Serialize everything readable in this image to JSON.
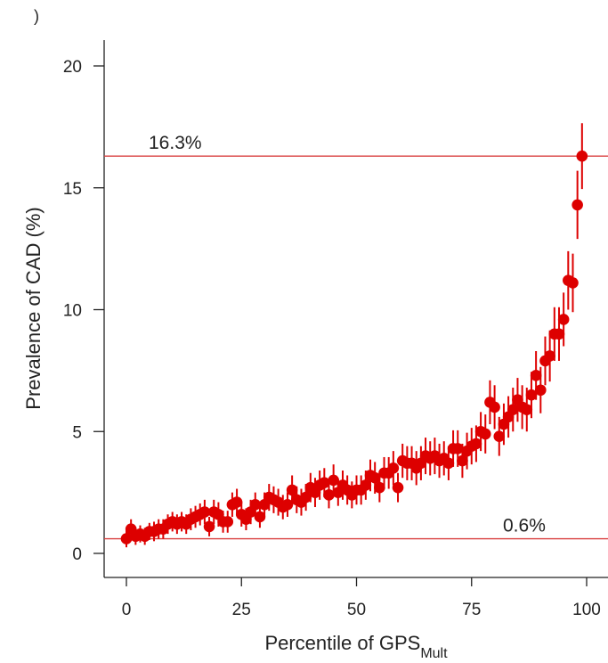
{
  "panel_label": ")",
  "chart_data": {
    "type": "scatter",
    "title": "",
    "xlabel": "Percentile of GPS",
    "xlabel_subscript": "Mult",
    "ylabel": "Prevalence of CAD (%)",
    "xlim": [
      0,
      100
    ],
    "ylim": [
      0,
      20
    ],
    "xticks": [
      0,
      25,
      50,
      75,
      100
    ],
    "yticks": [
      0,
      5,
      10,
      15,
      20
    ],
    "grid": false,
    "point_color": "#dd0000",
    "line_color": "#d94040",
    "reference_lines": [
      {
        "name": "top-percentile",
        "y": 16.3,
        "label": "16.3%"
      },
      {
        "name": "bottom-percentile",
        "y": 0.6,
        "label": "0.6%"
      }
    ],
    "series": [
      {
        "x": [
          0,
          1,
          2,
          3,
          4,
          5,
          6,
          7,
          8,
          9,
          10,
          11,
          12,
          13,
          14,
          15,
          16,
          17,
          18,
          19,
          20,
          21,
          22,
          23,
          24,
          25,
          26,
          27,
          28,
          29,
          30,
          31,
          32,
          33,
          34,
          35,
          36,
          37,
          38,
          39,
          40,
          41,
          42,
          43,
          44,
          45,
          46,
          47,
          48,
          49,
          50,
          51,
          52,
          53,
          54,
          55,
          56,
          57,
          58,
          59,
          60,
          61,
          62,
          63,
          64,
          65,
          66,
          67,
          68,
          69,
          70,
          71,
          72,
          73,
          74,
          75,
          76,
          77,
          78,
          79,
          80,
          81,
          82,
          83,
          84,
          85,
          86,
          87,
          88,
          89,
          90,
          91,
          92,
          93,
          94,
          95,
          96,
          97,
          98,
          99
        ],
        "y": [
          0.6,
          1.0,
          0.7,
          0.8,
          0.7,
          0.9,
          0.9,
          1.0,
          1.0,
          1.2,
          1.3,
          1.2,
          1.3,
          1.2,
          1.4,
          1.5,
          1.6,
          1.7,
          1.1,
          1.7,
          1.6,
          1.3,
          1.3,
          2.0,
          2.1,
          1.6,
          1.4,
          1.7,
          2.0,
          1.5,
          2.0,
          2.3,
          2.2,
          2.1,
          1.9,
          2.0,
          2.6,
          2.2,
          2.1,
          2.3,
          2.7,
          2.5,
          2.8,
          2.9,
          2.4,
          3.0,
          2.5,
          2.8,
          2.6,
          2.4,
          2.6,
          2.6,
          2.8,
          3.2,
          3.1,
          2.7,
          3.3,
          3.3,
          3.5,
          2.7,
          3.8,
          3.7,
          3.7,
          3.5,
          3.7,
          4.0,
          3.9,
          4.0,
          3.8,
          3.9,
          3.7,
          4.3,
          4.3,
          3.8,
          4.2,
          4.4,
          4.5,
          5.0,
          4.9,
          6.2,
          6.0,
          4.8,
          5.3,
          5.6,
          5.9,
          6.3,
          6.0,
          5.9,
          6.5,
          7.3,
          6.7,
          7.9,
          8.1,
          9.0,
          9.0,
          9.6,
          11.2,
          11.1,
          14.3,
          16.3
        ],
        "error": [
          0.35,
          0.4,
          0.35,
          0.35,
          0.35,
          0.35,
          0.4,
          0.4,
          0.4,
          0.4,
          0.4,
          0.4,
          0.4,
          0.4,
          0.45,
          0.45,
          0.45,
          0.5,
          0.4,
          0.5,
          0.5,
          0.45,
          0.45,
          0.5,
          0.55,
          0.5,
          0.45,
          0.5,
          0.5,
          0.45,
          0.5,
          0.55,
          0.55,
          0.55,
          0.5,
          0.5,
          0.6,
          0.55,
          0.55,
          0.55,
          0.6,
          0.6,
          0.6,
          0.6,
          0.55,
          0.65,
          0.55,
          0.6,
          0.6,
          0.55,
          0.6,
          0.6,
          0.6,
          0.65,
          0.65,
          0.6,
          0.65,
          0.65,
          0.7,
          0.6,
          0.7,
          0.7,
          0.7,
          0.7,
          0.7,
          0.75,
          0.7,
          0.75,
          0.7,
          0.7,
          0.7,
          0.75,
          0.75,
          0.7,
          0.75,
          0.75,
          0.75,
          0.8,
          0.8,
          0.9,
          0.9,
          0.8,
          0.85,
          0.85,
          0.9,
          0.9,
          0.9,
          0.9,
          0.95,
          1.0,
          0.95,
          1.0,
          1.05,
          1.1,
          1.1,
          1.1,
          1.2,
          1.2,
          1.4,
          1.35
        ]
      }
    ]
  }
}
